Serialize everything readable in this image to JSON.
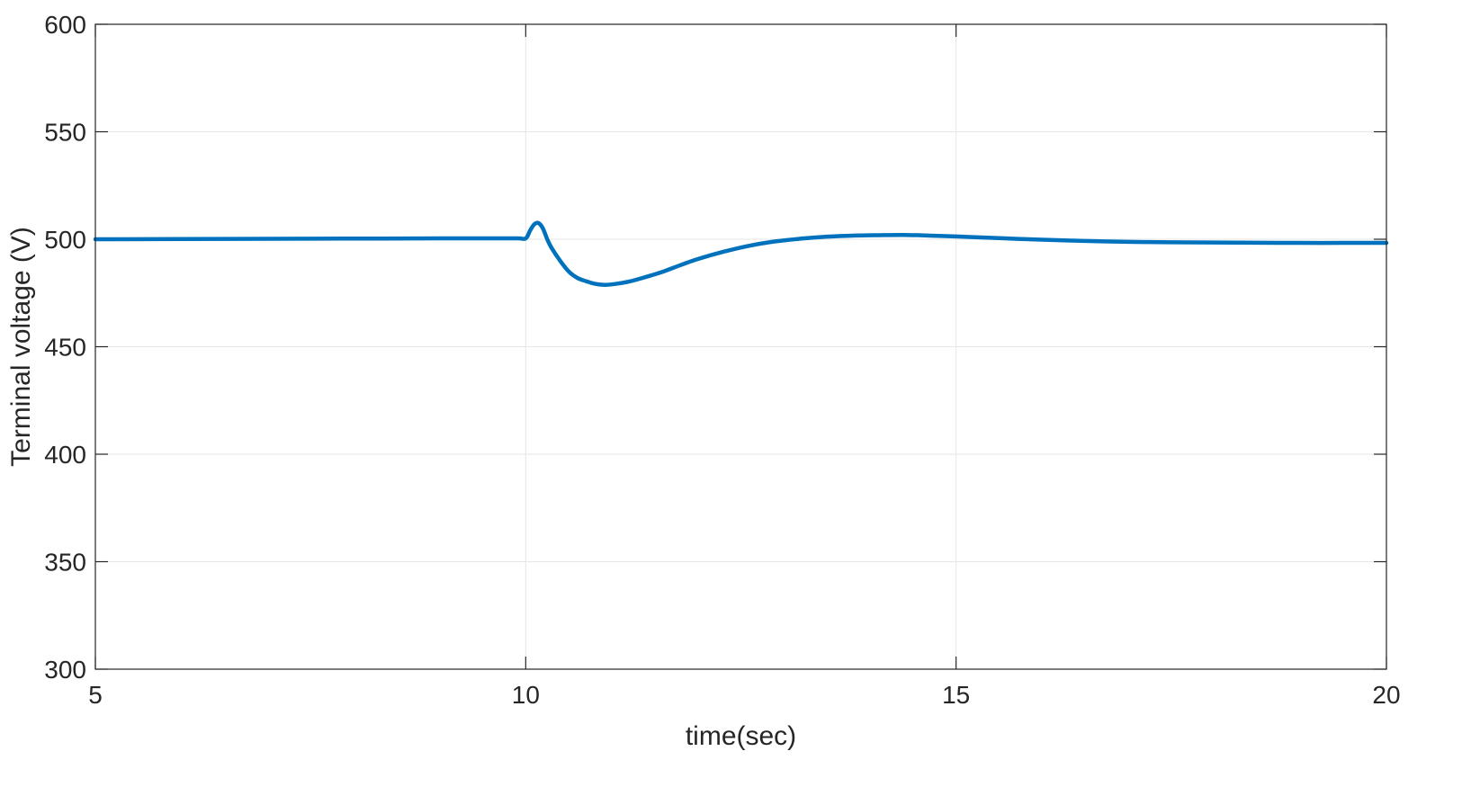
{
  "chart_data": {
    "type": "line",
    "title": "",
    "xlabel": "time(sec)",
    "ylabel": "Terminal voltage (V)",
    "xlim": [
      5,
      20
    ],
    "ylim": [
      300,
      600
    ],
    "xticks": [
      5,
      10,
      15,
      20
    ],
    "yticks": [
      300,
      350,
      400,
      450,
      500,
      550,
      600
    ],
    "grid": true,
    "legend": "none",
    "colors": {
      "line": "#0072BD",
      "grid": "#e6e6e6",
      "axes": "#262626"
    },
    "series": [
      {
        "x": [
          5,
          6,
          7,
          8,
          9,
          9.5,
          9.9,
          10,
          10.05,
          10.1,
          10.15,
          10.2,
          10.25,
          10.3,
          10.4,
          10.5,
          10.6,
          10.7,
          10.8,
          10.9,
          11.0,
          11.2,
          11.4,
          11.6,
          11.8,
          12.0,
          12.3,
          12.6,
          12.9,
          13.2,
          13.5,
          13.8,
          14.1,
          14.4,
          14.7,
          15.0,
          15.5,
          16.0,
          16.5,
          17.0,
          17.5,
          18.0,
          18.5,
          19.0,
          19.5,
          20.0
        ],
        "y": [
          500.0,
          500.1,
          500.2,
          500.3,
          500.4,
          500.4,
          500.4,
          500.4,
          504.0,
          507.0,
          507.5,
          505.0,
          500.0,
          496.0,
          490.0,
          485.0,
          482.0,
          480.5,
          479.3,
          478.8,
          479.0,
          480.3,
          482.5,
          485.0,
          488.0,
          490.8,
          494.2,
          497.0,
          499.0,
          500.3,
          501.2,
          501.7,
          501.9,
          502.0,
          501.7,
          501.3,
          500.5,
          499.8,
          499.2,
          498.8,
          498.6,
          498.5,
          498.4,
          498.3,
          498.3,
          498.3
        ]
      }
    ]
  }
}
